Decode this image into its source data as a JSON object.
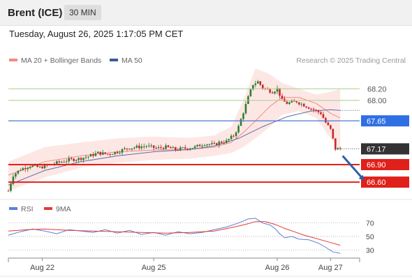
{
  "header": {
    "instrument": "Brent (ICE)",
    "timeframe": "30 MIN"
  },
  "timestamp": "Tuesday, August 26, 2025 1:17:05 PM CET",
  "legend": {
    "price": [
      {
        "label": "MA 20 + Bollinger Bands",
        "color": "#f28b82"
      },
      {
        "label": "MA 50",
        "color": "#3c5a99"
      }
    ],
    "rsi": [
      {
        "label": "RSI",
        "color": "#5b7fd6"
      },
      {
        "label": "9MA",
        "color": "#e53935"
      }
    ]
  },
  "credit": "Research © 2025 Trading Central",
  "chart_data": [
    {
      "type": "candlestick",
      "ylim": [
        66.35,
        68.55
      ],
      "x_ticks": [
        {
          "label": "Aug 22",
          "x": 14
        },
        {
          "label": "Aug 25",
          "x": 60
        },
        {
          "label": "Aug 26",
          "x": 111
        },
        {
          "label": "Aug 27",
          "x": 133
        }
      ],
      "x_range": [
        0,
        145
      ],
      "close_path": [
        [
          0,
          66.45
        ],
        [
          2,
          66.72
        ],
        [
          5,
          66.82
        ],
        [
          9,
          66.88
        ],
        [
          13,
          66.85
        ],
        [
          17,
          66.9
        ],
        [
          21,
          66.94
        ],
        [
          25,
          66.98
        ],
        [
          29,
          67.0
        ],
        [
          33,
          67.04
        ],
        [
          37,
          67.1
        ],
        [
          41,
          67.08
        ],
        [
          45,
          67.12
        ],
        [
          49,
          67.18
        ],
        [
          53,
          67.2
        ],
        [
          57,
          67.22
        ],
        [
          61,
          67.18
        ],
        [
          65,
          67.2
        ],
        [
          69,
          67.16
        ],
        [
          73,
          67.18
        ],
        [
          77,
          67.2
        ],
        [
          81,
          67.26
        ],
        [
          85,
          67.24
        ],
        [
          87,
          67.28
        ],
        [
          90,
          67.3
        ],
        [
          93,
          67.4
        ],
        [
          95,
          67.55
        ],
        [
          97,
          67.8
        ],
        [
          99,
          68.05
        ],
        [
          101,
          68.28
        ],
        [
          103,
          68.32
        ],
        [
          105,
          68.22
        ],
        [
          107,
          68.18
        ],
        [
          109,
          68.15
        ],
        [
          111,
          68.2
        ],
        [
          113,
          68.0
        ],
        [
          115,
          67.95
        ],
        [
          119,
          67.98
        ],
        [
          123,
          67.9
        ],
        [
          127,
          67.82
        ],
        [
          129,
          67.78
        ],
        [
          131,
          67.62
        ],
        [
          133,
          67.5
        ],
        [
          135,
          67.17
        ],
        [
          137,
          67.17
        ]
      ],
      "ma20_path": [
        [
          0,
          66.72
        ],
        [
          15,
          66.95
        ],
        [
          30,
          67.05
        ],
        [
          45,
          67.12
        ],
        [
          60,
          67.15
        ],
        [
          75,
          67.16
        ],
        [
          85,
          67.2
        ],
        [
          92,
          67.28
        ],
        [
          97,
          67.45
        ],
        [
          102,
          67.65
        ],
        [
          108,
          67.9
        ],
        [
          113,
          68.05
        ],
        [
          120,
          68.05
        ],
        [
          127,
          67.95
        ],
        [
          133,
          67.78
        ],
        [
          137,
          67.7
        ]
      ],
      "ma50_path": [
        [
          0,
          66.55
        ],
        [
          15,
          66.8
        ],
        [
          30,
          66.95
        ],
        [
          45,
          67.05
        ],
        [
          60,
          67.12
        ],
        [
          75,
          67.16
        ],
        [
          85,
          67.22
        ],
        [
          95,
          67.35
        ],
        [
          105,
          67.55
        ],
        [
          115,
          67.72
        ],
        [
          125,
          67.82
        ],
        [
          133,
          67.84
        ],
        [
          137,
          67.83
        ]
      ],
      "bollinger_upper_path": [
        [
          0,
          66.95
        ],
        [
          15,
          67.2
        ],
        [
          30,
          67.28
        ],
        [
          45,
          67.35
        ],
        [
          60,
          67.38
        ],
        [
          75,
          67.36
        ],
        [
          85,
          67.4
        ],
        [
          92,
          67.55
        ],
        [
          97,
          68.0
        ],
        [
          102,
          68.55
        ],
        [
          108,
          68.45
        ],
        [
          113,
          68.3
        ],
        [
          120,
          68.2
        ],
        [
          127,
          68.1
        ],
        [
          133,
          68.15
        ],
        [
          137,
          68.2
        ]
      ],
      "bollinger_lower_path": [
        [
          0,
          66.45
        ],
        [
          15,
          66.68
        ],
        [
          30,
          66.85
        ],
        [
          45,
          66.93
        ],
        [
          60,
          66.98
        ],
        [
          75,
          67.0
        ],
        [
          85,
          67.05
        ],
        [
          92,
          67.1
        ],
        [
          97,
          67.2
        ],
        [
          102,
          67.35
        ],
        [
          108,
          67.55
        ],
        [
          113,
          67.75
        ],
        [
          120,
          67.82
        ],
        [
          127,
          67.7
        ],
        [
          133,
          67.35
        ],
        [
          137,
          67.15
        ]
      ],
      "levels": [
        {
          "value": 68.2,
          "label": "68.20",
          "style": "green-thin"
        },
        {
          "value": 68.0,
          "label": "68.00",
          "style": "green-thin"
        },
        {
          "value": 67.65,
          "label": "67.65",
          "style": "blue"
        },
        {
          "value": 67.17,
          "label": "67.17",
          "style": "current"
        },
        {
          "value": 66.9,
          "label": "66.90",
          "style": "red"
        },
        {
          "value": 66.6,
          "label": "66.60",
          "style": "red"
        }
      ],
      "forecast_arrow": {
        "from": [
          138,
          67.05
        ],
        "to": [
          147,
          66.62
        ]
      }
    },
    {
      "type": "line",
      "title": "RSI",
      "ylim": [
        20,
        80
      ],
      "y_ticks": [
        70,
        50,
        30
      ],
      "rsi_path": [
        [
          0,
          52
        ],
        [
          5,
          57
        ],
        [
          10,
          61
        ],
        [
          15,
          58
        ],
        [
          20,
          54
        ],
        [
          25,
          60
        ],
        [
          30,
          58
        ],
        [
          35,
          56
        ],
        [
          40,
          60
        ],
        [
          45,
          55
        ],
        [
          50,
          59
        ],
        [
          55,
          53
        ],
        [
          60,
          56
        ],
        [
          65,
          52
        ],
        [
          70,
          57
        ],
        [
          75,
          54
        ],
        [
          80,
          56
        ],
        [
          85,
          60
        ],
        [
          90,
          64
        ],
        [
          95,
          70
        ],
        [
          99,
          76
        ],
        [
          102,
          77
        ],
        [
          105,
          70
        ],
        [
          108,
          67
        ],
        [
          110,
          62
        ],
        [
          112,
          54
        ],
        [
          114,
          48
        ],
        [
          117,
          50
        ],
        [
          120,
          46
        ],
        [
          124,
          45
        ],
        [
          128,
          40
        ],
        [
          131,
          34
        ],
        [
          134,
          27
        ],
        [
          137,
          25
        ]
      ],
      "ma9_path": [
        [
          0,
          58
        ],
        [
          8,
          60
        ],
        [
          15,
          61
        ],
        [
          25,
          59
        ],
        [
          35,
          58
        ],
        [
          45,
          57
        ],
        [
          55,
          56
        ],
        [
          65,
          55
        ],
        [
          75,
          56
        ],
        [
          85,
          58
        ],
        [
          92,
          63
        ],
        [
          98,
          68
        ],
        [
          102,
          72
        ],
        [
          106,
          72
        ],
        [
          110,
          68
        ],
        [
          114,
          62
        ],
        [
          118,
          57
        ],
        [
          122,
          52
        ],
        [
          126,
          48
        ],
        [
          130,
          44
        ],
        [
          134,
          40
        ],
        [
          137,
          37
        ]
      ]
    }
  ]
}
